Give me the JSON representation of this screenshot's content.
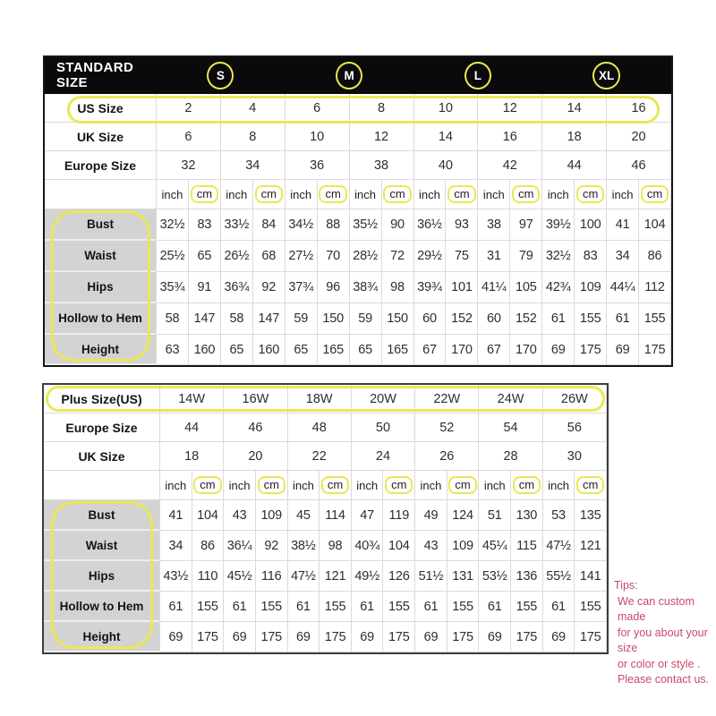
{
  "chart_data": [
    {
      "type": "table",
      "title": "STANDARD SIZE",
      "size_groups": [
        "S",
        "M",
        "L",
        "XL"
      ],
      "units": {
        "inch": "inch",
        "cm": "cm"
      },
      "size_rows": [
        {
          "label": "US Size",
          "values": [
            "2",
            "4",
            "6",
            "8",
            "10",
            "12",
            "14",
            "16"
          ],
          "highlighted": true
        },
        {
          "label": "UK Size",
          "values": [
            "6",
            "8",
            "10",
            "12",
            "14",
            "16",
            "18",
            "20"
          ],
          "highlighted": false
        },
        {
          "label": "Europe Size",
          "values": [
            "32",
            "34",
            "36",
            "38",
            "40",
            "42",
            "44",
            "46"
          ],
          "highlighted": false
        }
      ],
      "measure_rows": [
        {
          "label": "Bust",
          "values": [
            "32½",
            "83",
            "33½",
            "84",
            "34½",
            "88",
            "35½",
            "90",
            "36½",
            "93",
            "38",
            "97",
            "39½",
            "100",
            "41",
            "104"
          ]
        },
        {
          "label": "Waist",
          "values": [
            "25½",
            "65",
            "26½",
            "68",
            "27½",
            "70",
            "28½",
            "72",
            "29½",
            "75",
            "31",
            "79",
            "32½",
            "83",
            "34",
            "86"
          ]
        },
        {
          "label": "Hips",
          "values": [
            "35¾",
            "91",
            "36¾",
            "92",
            "37¾",
            "96",
            "38¾",
            "98",
            "39¾",
            "101",
            "41¼",
            "105",
            "42¾",
            "109",
            "44¼",
            "112"
          ]
        },
        {
          "label": "Hollow to Hem",
          "values": [
            "58",
            "147",
            "58",
            "147",
            "59",
            "150",
            "59",
            "150",
            "60",
            "152",
            "60",
            "152",
            "61",
            "155",
            "61",
            "155"
          ]
        },
        {
          "label": "Height",
          "values": [
            "63",
            "160",
            "65",
            "160",
            "65",
            "165",
            "65",
            "165",
            "67",
            "170",
            "67",
            "170",
            "69",
            "175",
            "69",
            "175"
          ]
        }
      ]
    },
    {
      "type": "table",
      "title": "Plus Size(US)",
      "units": {
        "inch": "inch",
        "cm": "cm"
      },
      "size_rows": [
        {
          "label": "Plus Size(US)",
          "values": [
            "14W",
            "16W",
            "18W",
            "20W",
            "22W",
            "24W",
            "26W"
          ],
          "highlighted": true
        },
        {
          "label": "Europe Size",
          "values": [
            "44",
            "46",
            "48",
            "50",
            "52",
            "54",
            "56"
          ],
          "highlighted": false
        },
        {
          "label": "UK Size",
          "values": [
            "18",
            "20",
            "22",
            "24",
            "26",
            "28",
            "30"
          ],
          "highlighted": false
        }
      ],
      "measure_rows": [
        {
          "label": "Bust",
          "values": [
            "41",
            "104",
            "43",
            "109",
            "45",
            "114",
            "47",
            "119",
            "49",
            "124",
            "51",
            "130",
            "53",
            "135"
          ]
        },
        {
          "label": "Waist",
          "values": [
            "34",
            "86",
            "36¼",
            "92",
            "38½",
            "98",
            "40¾",
            "104",
            "43",
            "109",
            "45¼",
            "115",
            "47½",
            "121"
          ]
        },
        {
          "label": "Hips",
          "values": [
            "43½",
            "110",
            "45½",
            "116",
            "47½",
            "121",
            "49½",
            "126",
            "51½",
            "131",
            "53½",
            "136",
            "55½",
            "141"
          ]
        },
        {
          "label": "Hollow to Hem",
          "values": [
            "61",
            "155",
            "61",
            "155",
            "61",
            "155",
            "61",
            "155",
            "61",
            "155",
            "61",
            "155",
            "61",
            "155"
          ]
        },
        {
          "label": "Height",
          "values": [
            "69",
            "175",
            "69",
            "175",
            "69",
            "175",
            "69",
            "175",
            "69",
            "175",
            "69",
            "175",
            "69",
            "175"
          ]
        }
      ]
    }
  ],
  "tips": {
    "title": "Tips:",
    "lines": [
      "We can custom made",
      "for you about your size",
      "or color or style .",
      "Please contact us."
    ]
  },
  "colors": {
    "highlight_yellow": "#ece752",
    "tips_red": "#c94a68",
    "header_bg": "#0a0a0a",
    "label_gray": "#d3d3d3"
  }
}
